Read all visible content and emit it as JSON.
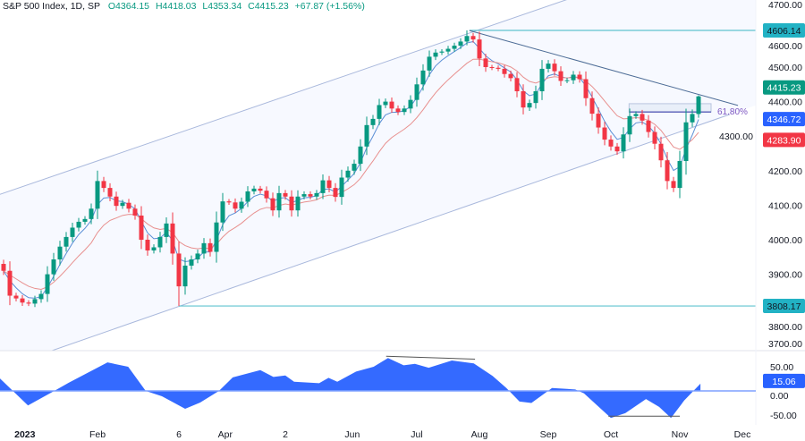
{
  "header": {
    "symbol": "S&P 500 Index, 1D, SP",
    "open": "O4364.15",
    "high": "H4418.03",
    "low": "L4353.34",
    "close": "C4415.23",
    "change": "+67.87 (+1.56%)"
  },
  "colors": {
    "up": "#089981",
    "down": "#f23645",
    "fast_ma": "#5b8fd6",
    "slow_ma": "#e8908f",
    "channel": "#a9b8dc",
    "trendline": "#4d6c96",
    "level": "#5fc3cf",
    "level_badge": "#22b2c4",
    "oscillator": "#2962ff",
    "fib": "#7e57c2"
  },
  "chart_data": {
    "type": "candlestick",
    "title": "S&P 500 Index, 1D, SP",
    "price_axis": {
      "ylim": [
        3700,
        4700
      ],
      "ticks": [
        "4700.00",
        "4600.00",
        "4500.00",
        "4400.00",
        "4300.00",
        "4200.00",
        "4100.00",
        "4000.00",
        "3900.00",
        "3800.00",
        "3700.00"
      ]
    },
    "x_ticks": [
      {
        "label": "2023",
        "index": 3.4,
        "bold": true
      },
      {
        "label": "Feb",
        "index": 15
      },
      {
        "label": "6",
        "index": 28
      },
      {
        "label": "Apr",
        "index": 35.4
      },
      {
        "label": "2",
        "index": 45
      },
      {
        "label": "Jun",
        "index": 55.7
      },
      {
        "label": "Jul",
        "index": 66
      },
      {
        "label": "Aug",
        "index": 76
      },
      {
        "label": "Sep",
        "index": 87
      },
      {
        "label": "Oct",
        "index": 97
      },
      {
        "label": "Nov",
        "index": 108
      },
      {
        "label": "Dec",
        "index": 118
      }
    ],
    "closes": [
      3910,
      3838,
      3830,
      3818,
      3815,
      3828,
      3843,
      3900,
      3943,
      3980,
      4008,
      4035,
      4052,
      4060,
      4090,
      4170,
      4150,
      4125,
      4098,
      4107,
      4090,
      4070,
      4000,
      3969,
      3978,
      4008,
      4047,
      3960,
      3865,
      3925,
      3943,
      3960,
      3990,
      3965,
      4050,
      4111,
      4108,
      4090,
      4110,
      4140,
      4148,
      4142,
      4120,
      4085,
      4135,
      4125,
      4085,
      4125,
      4132,
      4125,
      4135,
      4172,
      4150,
      4124,
      4180,
      4200,
      4220,
      4270,
      4332,
      4350,
      4390,
      4400,
      4380,
      4370,
      4380,
      4405,
      4450,
      4490,
      4530,
      4542,
      4545,
      4553,
      4562,
      4574,
      4590,
      4580,
      4525,
      4500,
      4498,
      4495,
      4480,
      4468,
      4430,
      4383,
      4396,
      4430,
      4495,
      4510,
      4488,
      4460,
      4462,
      4478,
      4465,
      4410,
      4365,
      4325,
      4290,
      4270,
      4256,
      4305,
      4358,
      4364.15,
      4345,
      4312,
      4278,
      4230,
      4170,
      4150,
      4228,
      4340,
      4364.15,
      4415.23
    ],
    "last_candle": {
      "open": 4364.15,
      "high": 4418.03,
      "low": 4353.34,
      "close": 4415.23
    },
    "moving_averages": [
      {
        "last_value": "4346.72",
        "color_key": "fast_ma",
        "badge": "#2962ff"
      },
      {
        "last_value": "4283.90",
        "color_key": "slow_ma",
        "badge": "#f23645"
      }
    ],
    "last_price_label": "4415.23",
    "levels": [
      {
        "label": "4606.14",
        "price": 4606.14,
        "from_index": 74.4
      },
      {
        "label": "3808.17",
        "price": 3808.17,
        "from_index": 28
      }
    ],
    "channel": {
      "upper": [
        [
          0,
          4135
        ],
        [
          91,
          4702
        ]
      ],
      "lower": [
        [
          0,
          3630
        ],
        [
          116,
          4363
        ]
      ]
    },
    "trendline": [
      [
        74.4,
        4606
      ],
      [
        117.3,
        4389
      ]
    ],
    "fib_zone": {
      "from_index": 99.9,
      "to_index": 113,
      "top": 4394,
      "bottom": 4370,
      "level_label": "61.80%"
    },
    "oscillator": {
      "ylim": [
        -70,
        80
      ],
      "ticks": [
        "50.00",
        "0.00",
        "-50.00"
      ],
      "last_value": "15.06",
      "points": [
        [
          -0.6,
          26
        ],
        [
          3.9,
          -30
        ],
        [
          8.1,
          0
        ],
        [
          10.4,
          17
        ],
        [
          16.6,
          59
        ],
        [
          19.9,
          50
        ],
        [
          22.7,
          0
        ],
        [
          25.3,
          -11
        ],
        [
          29,
          -37
        ],
        [
          31.4,
          -24
        ],
        [
          34.4,
          0
        ],
        [
          36.6,
          28
        ],
        [
          41,
          43
        ],
        [
          43.1,
          29
        ],
        [
          45,
          32
        ],
        [
          46.4,
          19
        ],
        [
          50.4,
          16
        ],
        [
          51.9,
          27
        ],
        [
          53.3,
          19
        ],
        [
          56.3,
          40
        ],
        [
          59.1,
          50
        ],
        [
          61.4,
          68
        ],
        [
          63.9,
          53
        ],
        [
          65.7,
          56
        ],
        [
          67.9,
          48
        ],
        [
          71.6,
          63
        ],
        [
          75.1,
          57
        ],
        [
          78.1,
          31
        ],
        [
          80.3,
          6
        ],
        [
          82.4,
          -22
        ],
        [
          84.3,
          -25
        ],
        [
          87.6,
          6
        ],
        [
          91.3,
          3
        ],
        [
          92.7,
          -5
        ],
        [
          97,
          -56
        ],
        [
          99.3,
          -46
        ],
        [
          102.6,
          -17
        ],
        [
          104.7,
          -33
        ],
        [
          106.6,
          -56
        ],
        [
          108.7,
          -20
        ],
        [
          111.3,
          15.06
        ]
      ],
      "divergence_lines": [
        [
          [
            61.1,
            68
          ],
          [
            75.3,
            62
          ]
        ],
        [
          [
            96.6,
            -56
          ],
          [
            108,
            -56
          ]
        ]
      ]
    }
  }
}
